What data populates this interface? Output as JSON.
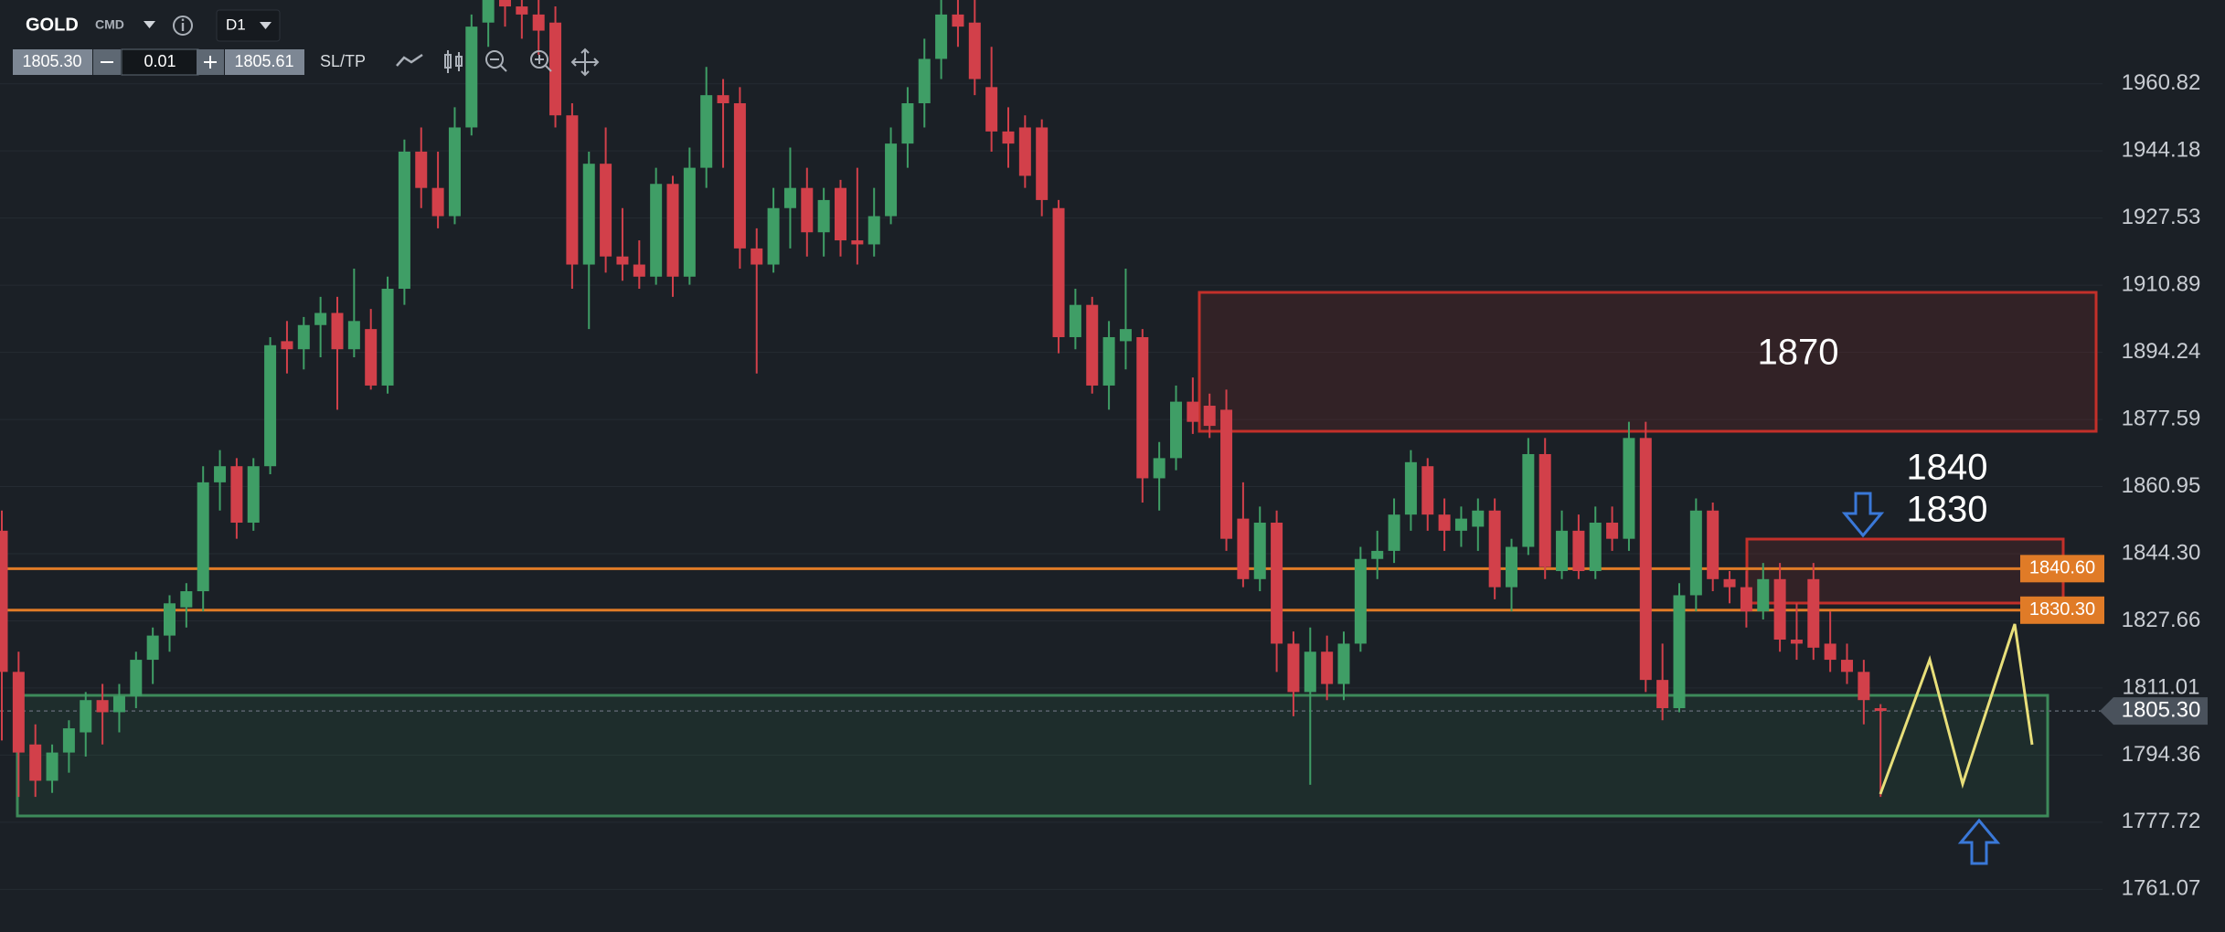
{
  "toolbar": {
    "symbol": "GOLD",
    "market": "CMD",
    "timeframe": "D1",
    "bid": "1805.30",
    "lot": "0.01",
    "ask": "1805.61",
    "sl_tp": "SL/TP"
  },
  "chart_data": {
    "type": "candlestick",
    "up_color": "#3f9e66",
    "down_color": "#d2404a",
    "ylim": [
      1750.5,
      1981.6
    ],
    "yticks": [
      1960.82,
      1944.18,
      1927.53,
      1910.89,
      1894.24,
      1877.59,
      1860.95,
      {
        "value": 1844.3,
        "label": "1844.30"
      },
      1827.66,
      1811.01,
      1794.36,
      1777.72,
      1761.07
    ],
    "grid": true,
    "open": [
      1850,
      1815,
      1797,
      1788,
      1795,
      1800,
      1808,
      1805,
      1809,
      1818,
      1824,
      1831,
      1835,
      1862,
      1866,
      1852,
      1866,
      1897,
      1895,
      1901,
      1904,
      1895,
      1900,
      1886,
      1910,
      1944,
      1935,
      1928,
      1950,
      1976,
      1985,
      1980,
      1978,
      1976,
      1953,
      1916,
      1941,
      1918,
      1916,
      1913,
      1936,
      1913,
      1940,
      1958,
      1956,
      1920,
      1916,
      1930,
      1935,
      1924,
      1935,
      1922,
      1921,
      1928,
      1946,
      1956,
      1967,
      1978,
      1976,
      1960,
      1949,
      1950,
      1950,
      1930,
      1898,
      1906,
      1886,
      1897,
      1898,
      1863,
      1868,
      1882,
      1881,
      1880,
      1853,
      1838,
      1852,
      1822,
      1810,
      1820,
      1812,
      1822,
      1843,
      1845,
      1854,
      1866,
      1854,
      1850,
      1851,
      1855,
      1836,
      1846,
      1869,
      1840,
      1850,
      1840,
      1852,
      1848,
      1873,
      1813,
      1806,
      1834,
      1855,
      1838,
      1836,
      1830,
      1838,
      1823,
      1838,
      1822,
      1818,
      1815,
      1806
    ],
    "high": [
      1855,
      1820,
      1802,
      1797,
      1803,
      1810,
      1812,
      1812,
      1820,
      1826,
      1834,
      1837,
      1866,
      1870,
      1868,
      1868,
      1898,
      1902,
      1903,
      1908,
      1908,
      1915,
      1905,
      1913,
      1947,
      1950,
      1944,
      1955,
      1978,
      1990,
      1990,
      1990,
      1985,
      1980,
      1956,
      1944,
      1950,
      1930,
      1922,
      1940,
      1938,
      1945,
      1965,
      1962,
      1960,
      1925,
      1935,
      1945,
      1940,
      1935,
      1937,
      1940,
      1935,
      1950,
      1960,
      1972,
      1982,
      1985,
      1982,
      1970,
      1955,
      1953,
      1952,
      1932,
      1910,
      1908,
      1902,
      1915,
      1900,
      1872,
      1886,
      1888,
      1884,
      1885,
      1862,
      1856,
      1855,
      1825,
      1826,
      1824,
      1825,
      1846,
      1850,
      1858,
      1870,
      1868,
      1858,
      1856,
      1858,
      1858,
      1848,
      1873,
      1873,
      1855,
      1854,
      1856,
      1856,
      1877,
      1877,
      1822,
      1837,
      1858,
      1857,
      1840,
      1840,
      1842,
      1842,
      1832,
      1842,
      1830,
      1822,
      1818,
      1807
    ],
    "low": [
      1798,
      1784,
      1784,
      1785,
      1790,
      1794,
      1797,
      1800,
      1806,
      1812,
      1820,
      1826,
      1830,
      1855,
      1848,
      1850,
      1864,
      1889,
      1890,
      1893,
      1880,
      1893,
      1885,
      1884,
      1906,
      1930,
      1925,
      1926,
      1948,
      1970,
      1975,
      1972,
      1968,
      1950,
      1910,
      1900,
      1914,
      1912,
      1910,
      1911,
      1908,
      1911,
      1935,
      1940,
      1915,
      1889,
      1914,
      1920,
      1918,
      1918,
      1918,
      1916,
      1918,
      1926,
      1940,
      1950,
      1962,
      1970,
      1958,
      1944,
      1940,
      1935,
      1928,
      1894,
      1895,
      1884,
      1880,
      1890,
      1857,
      1855,
      1865,
      1874,
      1873,
      1845,
      1836,
      1835,
      1815,
      1804,
      1787,
      1808,
      1808,
      1820,
      1838,
      1842,
      1850,
      1850,
      1845,
      1846,
      1845,
      1833,
      1830,
      1844,
      1838,
      1838,
      1838,
      1838,
      1845,
      1845,
      1810,
      1803,
      1805,
      1830,
      1835,
      1832,
      1826,
      1828,
      1820,
      1818,
      1818,
      1815,
      1812,
      1802,
      1784
    ],
    "close": [
      1815,
      1795,
      1788,
      1795,
      1801,
      1808,
      1805,
      1809,
      1818,
      1824,
      1832,
      1835,
      1862,
      1866,
      1852,
      1866,
      1896,
      1895,
      1901,
      1904,
      1895,
      1902,
      1886,
      1910,
      1944,
      1935,
      1928,
      1950,
      1975,
      1985,
      1980,
      1978,
      1974,
      1953,
      1916,
      1941,
      1918,
      1916,
      1913,
      1936,
      1913,
      1940,
      1958,
      1956,
      1920,
      1916,
      1930,
      1935,
      1924,
      1932,
      1922,
      1921,
      1928,
      1946,
      1956,
      1967,
      1978,
      1975,
      1962,
      1949,
      1946,
      1938,
      1932,
      1898,
      1906,
      1886,
      1898,
      1900,
      1863,
      1868,
      1882,
      1877,
      1876,
      1848,
      1838,
      1852,
      1822,
      1810,
      1820,
      1812,
      1822,
      1843,
      1845,
      1854,
      1867,
      1854,
      1850,
      1853,
      1855,
      1836,
      1846,
      1869,
      1841,
      1850,
      1840,
      1852,
      1848,
      1873,
      1813,
      1806,
      1834,
      1855,
      1838,
      1836,
      1830,
      1838,
      1823,
      1822,
      1821,
      1818,
      1815,
      1808,
      1805.3
    ],
    "price_lines": [
      {
        "value": 1840.6,
        "label": "1840.60",
        "color": "#e07b27"
      },
      {
        "value": 1830.3,
        "label": "1830.30",
        "color": "#e07b27"
      }
    ],
    "current_price": {
      "value": 1805.3,
      "label": "1805.30"
    },
    "annotations": [
      "1870",
      "1840",
      "1830"
    ]
  }
}
